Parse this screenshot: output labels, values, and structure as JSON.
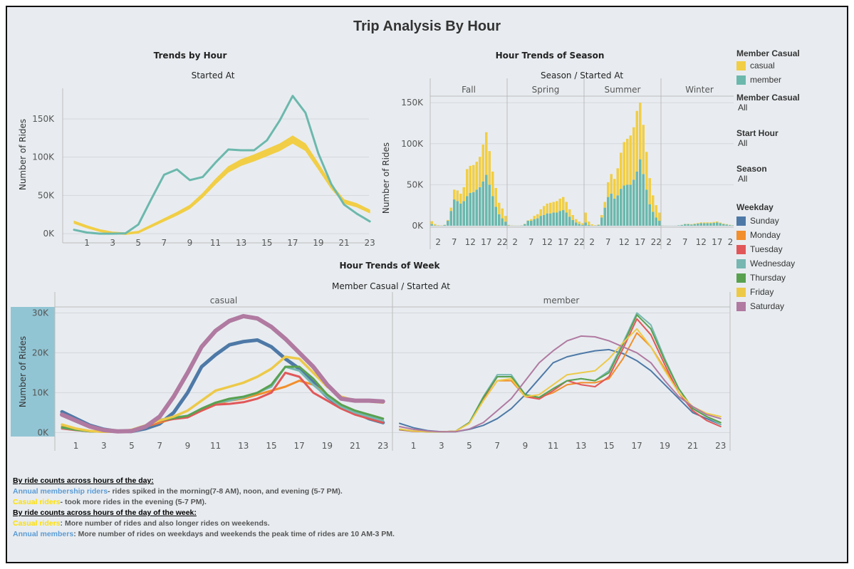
{
  "title": "Trip Analysis By Hour",
  "colors": {
    "casual": "#f1ce45",
    "member": "#6cb8ad",
    "Sunday": "#4e79a7",
    "Monday": "#f28e2b",
    "Tuesday": "#e15759",
    "Wednesday": "#76b7b2",
    "Thursday": "#59a14f",
    "Friday": "#edc948",
    "Saturday": "#b07aa1"
  },
  "legend": {
    "member_casual": {
      "title": "Member Casual",
      "items": [
        "casual",
        "member"
      ]
    },
    "filters": [
      {
        "title": "Member Casual",
        "value": "All"
      },
      {
        "title": "Start Hour",
        "value": "All"
      },
      {
        "title": "Season",
        "value": "All"
      }
    ],
    "weekday": {
      "title": "Weekday",
      "items": [
        "Sunday",
        "Monday",
        "Tuesday",
        "Wednesday",
        "Thursday",
        "Friday",
        "Saturday"
      ]
    }
  },
  "notes": {
    "h1": "By ride counts across hours of the day:",
    "l1a": "Annual membership riders",
    "l1b": "- rides spiked in the morning(7-8 AM), noon, and evening (5-7 PM).",
    "l2a": "Casual riders",
    "l2b": "- took more rides in the evening (5-7 PM).",
    "h2": "By ride counts across hours of the day of the week:",
    "l3a": "Casual riders",
    "l3b": ": More number of rides and also longer rides on weekends.",
    "l4a": "Annual members",
    "l4b": ": More number of rides on weekdays and weekends the peak time of rides are 10 AM-3 PM."
  },
  "chart_data": [
    {
      "type": "line",
      "title": "Trends by Hour",
      "subtitle": "Started At",
      "ylabel": "Number of Rides",
      "x": [
        0,
        1,
        2,
        3,
        4,
        5,
        6,
        7,
        8,
        9,
        10,
        11,
        12,
        13,
        14,
        15,
        16,
        17,
        18,
        19,
        20,
        21,
        22,
        23
      ],
      "xticks": [
        "1",
        "3",
        "5",
        "7",
        "9",
        "11",
        "13",
        "15",
        "17",
        "19",
        "21",
        "23"
      ],
      "ylim": [
        0,
        190000
      ],
      "yticks": [
        "0K",
        "50K",
        "100K",
        "150K"
      ],
      "series": [
        {
          "name": "casual",
          "values": [
            15000,
            9000,
            4000,
            1000,
            0,
            2000,
            10000,
            18000,
            26000,
            35000,
            50000,
            68000,
            84000,
            93000,
            99000,
            106000,
            113000,
            123000,
            113000,
            88000,
            62000,
            42000,
            37000,
            29000
          ]
        },
        {
          "name": "member",
          "values": [
            5000,
            1500,
            0,
            0,
            500,
            12000,
            45000,
            77000,
            84000,
            70000,
            74000,
            93000,
            110000,
            109000,
            109000,
            122000,
            148000,
            180000,
            158000,
            105000,
            65000,
            38000,
            26000,
            16000
          ]
        }
      ]
    },
    {
      "type": "bar",
      "title": "Hour Trends of Season",
      "subtitle": "Season / Started At",
      "ylabel": "Number of Rides",
      "facets": [
        "Fall",
        "Spring",
        "Summer",
        "Winter"
      ],
      "x": [
        0,
        1,
        2,
        3,
        4,
        5,
        6,
        7,
        8,
        9,
        10,
        11,
        12,
        13,
        14,
        15,
        16,
        17,
        18,
        19,
        20,
        21,
        22,
        23
      ],
      "xticks": [
        "2",
        "7",
        "12",
        "17",
        "22"
      ],
      "ylim": [
        0,
        160000
      ],
      "yticks": [
        "0K",
        "50K",
        "100K",
        "150K"
      ],
      "series": [
        {
          "facet": "Fall",
          "name": "member",
          "values": [
            2000,
            500,
            200,
            200,
            1000,
            6000,
            18000,
            32000,
            30000,
            27000,
            30000,
            36000,
            40000,
            41000,
            44000,
            47000,
            54000,
            62000,
            50000,
            36000,
            23000,
            14000,
            9000,
            5000
          ]
        },
        {
          "facet": "Fall",
          "name": "casual",
          "values": [
            3500,
            1500,
            500,
            200,
            200,
            1000,
            4000,
            12000,
            13000,
            12000,
            17000,
            33000,
            33000,
            33000,
            34000,
            37000,
            45000,
            52000,
            41000,
            30000,
            23000,
            14000,
            12000,
            7000
          ]
        },
        {
          "facet": "Spring",
          "name": "member",
          "values": [
            500,
            200,
            100,
            100,
            300,
            2000,
            6000,
            6000,
            8000,
            9000,
            12000,
            13000,
            15000,
            15000,
            16000,
            16000,
            18000,
            19000,
            16000,
            11000,
            7000,
            4000,
            2000,
            1000
          ]
        },
        {
          "facet": "Spring",
          "name": "casual",
          "values": [
            500,
            200,
            100,
            100,
            100,
            300,
            500,
            2000,
            4000,
            5000,
            8000,
            11000,
            12000,
            13000,
            13000,
            14000,
            15000,
            16000,
            13000,
            9000,
            6000,
            4000,
            3000,
            2000
          ]
        },
        {
          "facet": "Summer",
          "name": "member",
          "values": [
            4000,
            1000,
            200,
            200,
            1000,
            10000,
            22000,
            35000,
            39000,
            33000,
            37000,
            45000,
            49000,
            50000,
            50000,
            56000,
            66000,
            81000,
            63000,
            44000,
            26000,
            17000,
            10000,
            6000
          ]
        },
        {
          "facet": "Summer",
          "name": "casual",
          "values": [
            12000,
            4000,
            1500,
            500,
            500,
            3000,
            7000,
            18000,
            24000,
            24000,
            33000,
            44000,
            53000,
            56000,
            60000,
            64000,
            74000,
            69000,
            60000,
            46000,
            32000,
            20000,
            15000,
            10000
          ]
        },
        {
          "facet": "Winter",
          "name": "member",
          "values": [
            200,
            100,
            50,
            50,
            100,
            500,
            1000,
            2000,
            2000,
            1500,
            2000,
            2500,
            3000,
            3000,
            3000,
            3000,
            3500,
            4000,
            3000,
            2000,
            1500,
            800,
            600,
            300
          ]
        },
        {
          "facet": "Winter",
          "name": "casual",
          "values": [
            100,
            50,
            0,
            0,
            0,
            0,
            100,
            200,
            300,
            400,
            600,
            800,
            1000,
            1000,
            1100,
            1000,
            1100,
            1100,
            800,
            600,
            400,
            300,
            200,
            100
          ]
        }
      ]
    },
    {
      "type": "line",
      "title": "Hour Trends of Week",
      "subtitle": "Member Casual / Started At",
      "ylabel": "Number of Rides",
      "facets": [
        "casual",
        "member"
      ],
      "x": [
        0,
        1,
        2,
        3,
        4,
        5,
        6,
        7,
        8,
        9,
        10,
        11,
        12,
        13,
        14,
        15,
        16,
        17,
        18,
        19,
        20,
        21,
        22,
        23
      ],
      "xticks": [
        "1",
        "3",
        "5",
        "7",
        "9",
        "11",
        "13",
        "15",
        "17",
        "19",
        "21",
        "23"
      ],
      "ylim": [
        -1000,
        31500
      ],
      "yticks": [
        "0K",
        "10K",
        "20K",
        "30K"
      ],
      "series": {
        "casual": [
          {
            "name": "Sunday",
            "values": [
              5200,
              3500,
              1800,
              800,
              300,
              300,
              1000,
              2200,
              5000,
              10000,
              16500,
              19500,
              22000,
              22800,
              23200,
              21500,
              18500,
              16000,
              12500,
              9000,
              6500,
              5000,
              3500,
              2500
            ]
          },
          {
            "name": "Monday",
            "values": [
              1500,
              800,
              400,
              200,
              200,
              600,
              1500,
              2500,
              3500,
              4000,
              5500,
              7000,
              8000,
              8500,
              9500,
              10500,
              11500,
              13000,
              12000,
              9500,
              7000,
              4500,
              3500,
              2500
            ]
          },
          {
            "name": "Tuesday",
            "values": [
              1000,
              600,
              300,
              200,
              200,
              600,
              1500,
              2800,
              3400,
              3800,
              5500,
              7000,
              7200,
              7600,
              8500,
              10000,
              15000,
              14000,
              10000,
              8000,
              6000,
              4500,
              3500,
              2500
            ]
          },
          {
            "name": "Wednesday",
            "values": [
              1200,
              700,
              300,
              200,
              200,
              700,
              1800,
              3200,
              3800,
              4200,
              6000,
              7500,
              8000,
              8800,
              10000,
              11500,
              16500,
              15500,
              12000,
              9000,
              6500,
              5000,
              4000,
              3000
            ]
          },
          {
            "name": "Thursday",
            "values": [
              1300,
              700,
              300,
              200,
              200,
              700,
              1800,
              3000,
              3600,
              4200,
              6000,
              7500,
              8500,
              9000,
              10000,
              12000,
              16500,
              16500,
              13500,
              9500,
              7000,
              5500,
              4500,
              3500
            ]
          },
          {
            "name": "Friday",
            "values": [
              2000,
              1000,
              400,
              200,
              200,
              700,
              1800,
              3000,
              4000,
              5500,
              8000,
              10500,
              11500,
              12500,
              14000,
              16000,
              19000,
              18500,
              15000,
              11500,
              9000,
              8000,
              7800,
              7500
            ]
          },
          {
            "name": "Saturday",
            "values": [
              4500,
              3000,
              1500,
              600,
              300,
              400,
              1500,
              4000,
              9000,
              15000,
              21500,
              25500,
              28000,
              29200,
              28600,
              26500,
              23500,
              20000,
              16500,
              12000,
              8500,
              8000,
              8000,
              7800
            ]
          }
        ],
        "member": [
          {
            "name": "Sunday",
            "values": [
              2300,
              1200,
              500,
              200,
              200,
              800,
              1800,
              3500,
              6000,
              9500,
              13500,
              17500,
              19000,
              19800,
              20500,
              20800,
              19800,
              18000,
              15500,
              12000,
              8500,
              5000,
              3500,
              2000
            ]
          },
          {
            "name": "Monday",
            "values": [
              800,
              400,
              200,
              200,
              300,
              2500,
              8000,
              13000,
              13000,
              9000,
              8800,
              10000,
              12000,
              12500,
              12500,
              13500,
              18500,
              25000,
              21500,
              16000,
              10000,
              6000,
              4000,
              2500
            ]
          },
          {
            "name": "Tuesday",
            "values": [
              700,
              300,
              200,
              200,
              300,
              2500,
              8500,
              14000,
              14000,
              9000,
              8400,
              10500,
              13000,
              12000,
              11500,
              14000,
              21000,
              28500,
              24500,
              17000,
              10000,
              5500,
              3000,
              1500
            ]
          },
          {
            "name": "Wednesday",
            "values": [
              800,
              400,
              200,
              200,
              300,
              2500,
              9000,
              14500,
              14500,
              9500,
              8800,
              11000,
              13000,
              13500,
              13000,
              15500,
              22500,
              30000,
              27000,
              18500,
              11000,
              6000,
              4000,
              2000
            ]
          },
          {
            "name": "Thursday",
            "values": [
              800,
              400,
              200,
              200,
              300,
              2500,
              8800,
              14000,
              14000,
              9500,
              8800,
              11000,
              13000,
              13500,
              13000,
              15000,
              22000,
              29500,
              26000,
              18000,
              11000,
              6000,
              4000,
              2500
            ]
          },
          {
            "name": "Friday",
            "values": [
              900,
              400,
              200,
              200,
              300,
              2300,
              8000,
              13000,
              13500,
              9000,
              9500,
              12000,
              14500,
              15000,
              15500,
              18500,
              22500,
              26000,
              21500,
              15500,
              10000,
              6500,
              4800,
              4000
            ]
          },
          {
            "name": "Saturday",
            "values": [
              1500,
              800,
              400,
              200,
              200,
              900,
              2500,
              5500,
              8500,
              13000,
              17500,
              20500,
              23000,
              24200,
              24000,
              23000,
              21500,
              20000,
              17500,
              13000,
              9000,
              6500,
              4500,
              3500
            ]
          }
        ]
      }
    }
  ]
}
